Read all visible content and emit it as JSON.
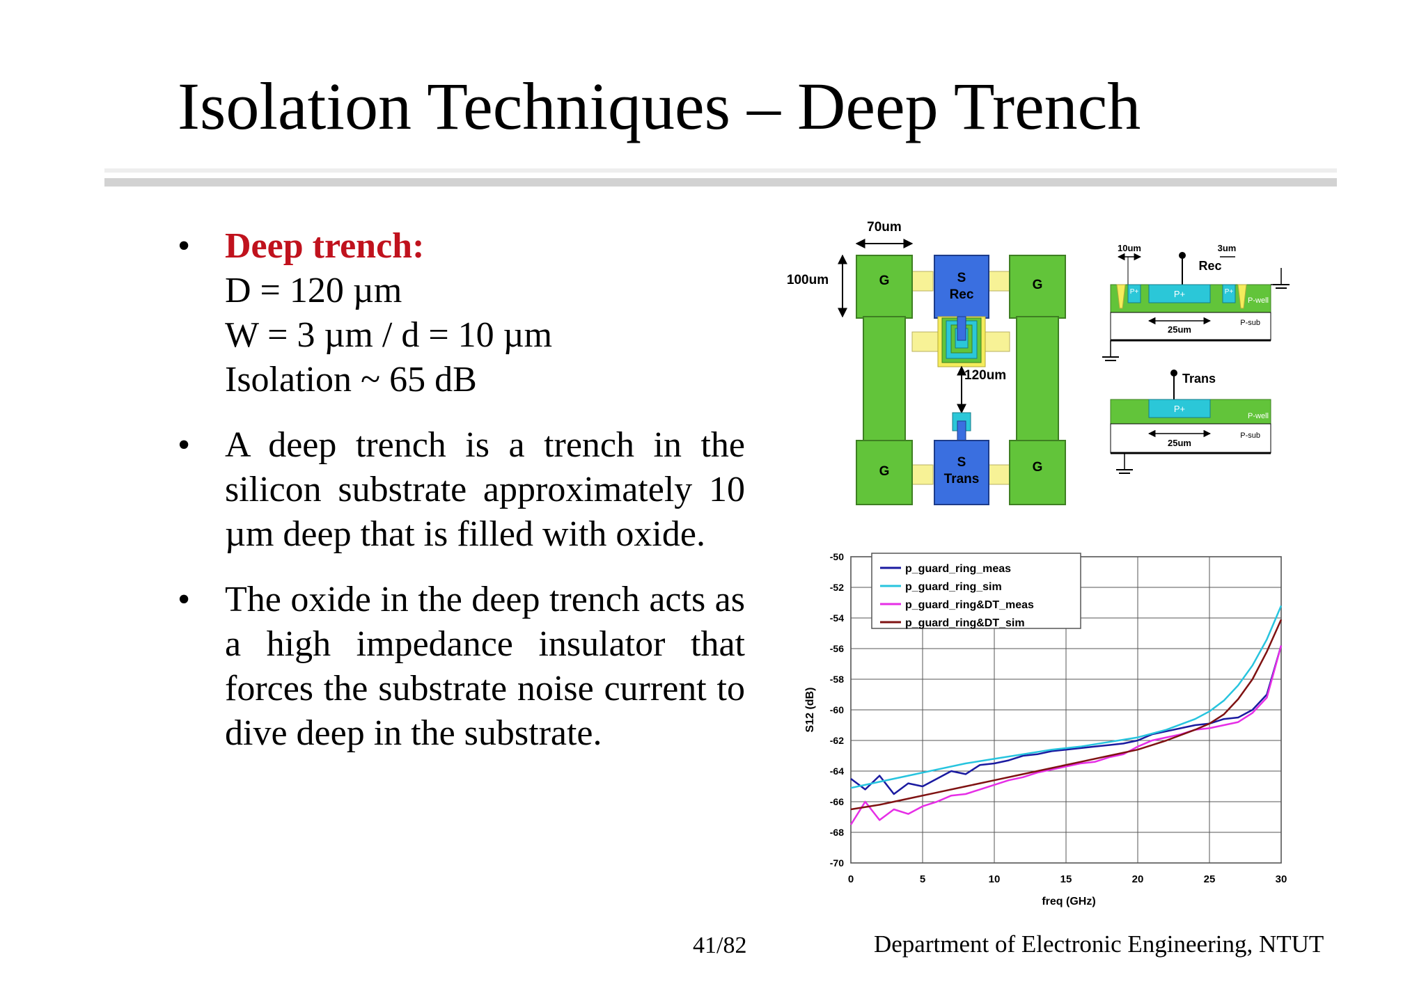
{
  "slide": {
    "title": "Isolation Techniques – Deep Trench",
    "page_number": "41/82",
    "department": "Department of Electronic Engineering, NTUT"
  },
  "bullets": [
    {
      "heading": "Deep trench:",
      "lines": [
        "D = 120 µm",
        "W = 3 µm / d = 10 µm",
        "Isolation ~ 65 dB"
      ]
    },
    {
      "text": "A deep trench is a trench in the silicon substrate approximately 10 µm deep that is filled with oxide."
    },
    {
      "text": "The oxide in the deep trench acts as a high impedance insulator that forces the substrate noise current to dive deep in the substrate."
    }
  ],
  "diagram": {
    "dim_width": "70um",
    "dim_height": "100um",
    "dim_spacing": "120um",
    "ground_pad": "G",
    "rec_s": "S",
    "rec_label": "Rec",
    "trans_s": "S",
    "trans_label": "Trans",
    "rec_section": {
      "title": "Rec",
      "dim_d": "10um",
      "dim_w": "3um",
      "dim_pad": "25um",
      "center_label": "P+",
      "side_label": "P+",
      "well_label": "P-well",
      "sub_label": "P-sub"
    },
    "trans_section": {
      "title": "Trans",
      "dim_pad": "25um",
      "center_label": "P+",
      "well_label": "P-well",
      "sub_label": "P-sub"
    }
  },
  "chart_data": {
    "type": "line",
    "xlabel": "freq (GHz)",
    "ylabel": "S12 (dB)",
    "xlim": [
      0,
      30
    ],
    "ylim": [
      -70,
      -50
    ],
    "xticks": [
      0,
      5,
      10,
      15,
      20,
      25,
      30
    ],
    "yticks": [
      -50,
      -52,
      -54,
      -56,
      -58,
      -60,
      -62,
      -64,
      -66,
      -68,
      -70
    ],
    "grid": true,
    "legend_position": "top-left",
    "series": [
      {
        "name": "p_guard_ring_meas",
        "color": "#1a1aa0",
        "x": [
          0,
          1,
          2,
          3,
          4,
          5,
          6,
          7,
          8,
          9,
          10,
          11,
          12,
          13,
          14,
          15,
          16,
          17,
          18,
          19,
          20,
          21,
          22,
          23,
          24,
          25,
          26,
          27,
          28,
          29,
          30
        ],
        "y": [
          -64.5,
          -65.2,
          -64.3,
          -65.5,
          -64.8,
          -65.0,
          -64.5,
          -64.0,
          -64.2,
          -63.6,
          -63.5,
          -63.3,
          -63.0,
          -62.9,
          -62.7,
          -62.6,
          -62.5,
          -62.4,
          -62.3,
          -62.2,
          -62.0,
          -61.6,
          -61.4,
          -61.2,
          -61.0,
          -60.9,
          -60.6,
          -60.5,
          -60.0,
          -59.0,
          -55.8
        ]
      },
      {
        "name": "p_guard_ring_sim",
        "color": "#27c4de",
        "x": [
          0,
          2,
          4,
          6,
          8,
          10,
          12,
          14,
          16,
          18,
          20,
          22,
          24,
          25,
          26,
          27,
          28,
          29,
          30
        ],
        "y": [
          -65.1,
          -64.7,
          -64.3,
          -63.9,
          -63.5,
          -63.2,
          -62.9,
          -62.6,
          -62.4,
          -62.1,
          -61.8,
          -61.3,
          -60.6,
          -60.1,
          -59.4,
          -58.4,
          -57.1,
          -55.4,
          -53.2
        ]
      },
      {
        "name": "p_guard_ring&DT_meas",
        "color": "#e62ee6",
        "x": [
          0,
          1,
          2,
          3,
          4,
          5,
          6,
          7,
          8,
          9,
          10,
          11,
          12,
          13,
          14,
          15,
          16,
          17,
          18,
          19,
          20,
          21,
          22,
          23,
          24,
          25,
          26,
          27,
          28,
          29,
          30
        ],
        "y": [
          -67.5,
          -66.0,
          -67.2,
          -66.5,
          -66.8,
          -66.3,
          -66.0,
          -65.6,
          -65.5,
          -65.2,
          -64.9,
          -64.6,
          -64.4,
          -64.1,
          -63.9,
          -63.7,
          -63.5,
          -63.4,
          -63.1,
          -62.9,
          -62.4,
          -62.0,
          -61.8,
          -61.6,
          -61.3,
          -61.2,
          -61.0,
          -60.8,
          -60.2,
          -59.2,
          -55.8
        ]
      },
      {
        "name": "p_guard_ring&DT_sim",
        "color": "#7f1212",
        "x": [
          0,
          2,
          4,
          6,
          8,
          10,
          12,
          14,
          16,
          18,
          20,
          22,
          24,
          25,
          26,
          27,
          28,
          29,
          30
        ],
        "y": [
          -66.5,
          -66.2,
          -65.8,
          -65.4,
          -65.0,
          -64.6,
          -64.2,
          -63.8,
          -63.4,
          -63.0,
          -62.6,
          -62.0,
          -61.3,
          -60.9,
          -60.3,
          -59.3,
          -58.0,
          -56.2,
          -54.1
        ]
      }
    ]
  }
}
